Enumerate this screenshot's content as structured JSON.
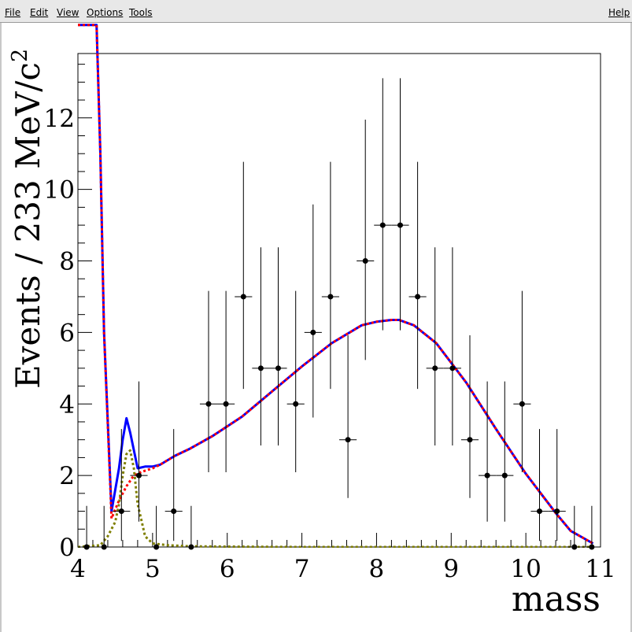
{
  "menu": {
    "file": "File",
    "edit": "Edit",
    "view": "View",
    "options": "Options",
    "tools": "Tools",
    "help": "Help"
  },
  "colors": {
    "total_fit": "#0000ff",
    "background": "#ff0000",
    "signal": "#7f7f00",
    "data": "#000000"
  },
  "chart_data": {
    "type": "scatter",
    "title": "",
    "xlabel": "mass",
    "ylabel": "Events / 233 MeV/c",
    "ylabel_sup": "2",
    "xlim": [
      4,
      11
    ],
    "ylim": [
      0,
      13.8
    ],
    "xticks": [
      4,
      5,
      6,
      7,
      8,
      9,
      10,
      11
    ],
    "yticks": [
      0,
      2,
      4,
      6,
      8,
      10,
      12
    ],
    "grid": false,
    "points": {
      "x": [
        4.117,
        4.35,
        4.583,
        4.817,
        5.05,
        5.283,
        5.517,
        5.75,
        5.983,
        6.217,
        6.45,
        6.683,
        6.917,
        7.15,
        7.383,
        7.617,
        7.85,
        8.083,
        8.317,
        8.55,
        8.783,
        9.017,
        9.25,
        9.483,
        9.717,
        9.95,
        10.183,
        10.417,
        10.65,
        10.883
      ],
      "y": [
        0,
        0,
        1,
        2,
        0,
        1,
        0,
        4,
        4,
        7,
        5,
        5,
        4,
        6,
        7,
        3,
        8,
        9,
        9,
        7,
        5,
        5,
        3,
        2,
        2,
        4,
        1,
        1,
        0,
        0
      ],
      "x_err": 0.1167,
      "y_err_low": [
        0,
        0,
        0.83,
        1.29,
        0,
        0.83,
        0,
        1.91,
        1.91,
        2.58,
        2.16,
        2.16,
        1.91,
        2.38,
        2.58,
        1.63,
        2.77,
        2.94,
        2.94,
        2.58,
        2.16,
        2.16,
        1.63,
        1.29,
        1.29,
        1.91,
        0.83,
        0.83,
        0,
        0
      ],
      "y_err_high": [
        1.15,
        1.15,
        2.3,
        2.63,
        1.15,
        2.3,
        1.15,
        3.16,
        3.16,
        3.77,
        3.38,
        3.38,
        3.16,
        3.58,
        3.77,
        2.92,
        3.95,
        4.11,
        4.11,
        3.77,
        3.38,
        3.38,
        2.92,
        2.63,
        2.63,
        3.16,
        2.3,
        2.3,
        1.15,
        1.15
      ]
    },
    "series": [
      {
        "style": "solid",
        "color": "#0000ff",
        "x": [
          4.0,
          4.25,
          4.3,
          4.35,
          4.45,
          4.55,
          4.6,
          4.65,
          4.7,
          4.8,
          4.9,
          5.0,
          5.1,
          5.3,
          5.5,
          5.8,
          6.2,
          6.6,
          7.0,
          7.4,
          7.8,
          8.0,
          8.2,
          8.3,
          8.5,
          8.8,
          9.2,
          9.6,
          10.0,
          10.4,
          10.6,
          10.9
        ],
        "y": [
          14.6,
          14.6,
          11.0,
          6.0,
          1.0,
          2.2,
          3.0,
          3.6,
          3.2,
          2.2,
          2.25,
          2.25,
          2.3,
          2.55,
          2.75,
          3.1,
          3.65,
          4.35,
          5.05,
          5.7,
          6.2,
          6.3,
          6.35,
          6.35,
          6.2,
          5.7,
          4.6,
          3.3,
          2.05,
          0.95,
          0.45,
          0.1
        ]
      },
      {
        "style": "dotted",
        "color": "#ff0000",
        "x": [
          4.0,
          4.25,
          4.3,
          4.35,
          4.45,
          4.55,
          4.65,
          4.75,
          4.85,
          5.0,
          5.1,
          5.3,
          5.5,
          5.8,
          6.2,
          6.6,
          7.0,
          7.4,
          7.8,
          8.0,
          8.2,
          8.3,
          8.5,
          8.8,
          9.2,
          9.6,
          10.0,
          10.4,
          10.6,
          10.9
        ],
        "y": [
          14.6,
          14.6,
          11.0,
          6.0,
          0.8,
          1.3,
          1.7,
          2.0,
          2.1,
          2.2,
          2.3,
          2.55,
          2.75,
          3.1,
          3.65,
          4.35,
          5.05,
          5.7,
          6.2,
          6.3,
          6.35,
          6.35,
          6.2,
          5.7,
          4.6,
          3.3,
          2.05,
          0.95,
          0.45,
          0.1
        ]
      },
      {
        "style": "dotted",
        "color": "#7f7f00",
        "x": [
          4.0,
          4.3,
          4.4,
          4.5,
          4.55,
          4.6,
          4.65,
          4.7,
          4.75,
          4.8,
          4.9,
          5.0,
          5.2,
          5.5,
          6.0,
          7.0,
          8.0,
          9.0,
          10.0,
          10.9
        ],
        "y": [
          0.0,
          0.05,
          0.3,
          0.7,
          1.2,
          2.0,
          2.6,
          2.7,
          2.2,
          1.2,
          0.3,
          0.1,
          0.05,
          0.02,
          0.01,
          0.0,
          0.0,
          0.0,
          0.0,
          0.0
        ]
      }
    ]
  }
}
